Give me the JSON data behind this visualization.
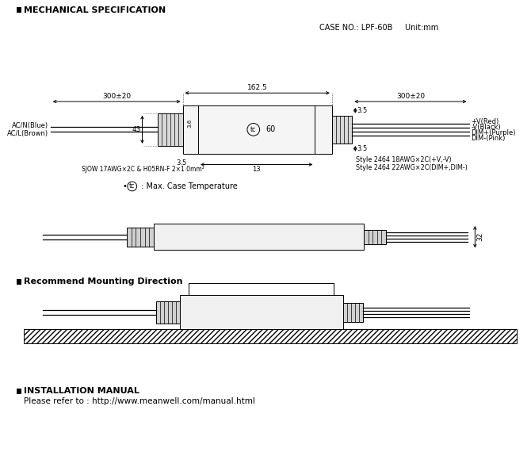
{
  "title_mech": "MECHANICAL SPECIFICATION",
  "title_mount": "Recommend Mounting Direction",
  "title_install": "INSTALLATION MANUAL",
  "install_text": "Please refer to : http://www.meanwell.com/manual.html",
  "case_no": "CASE NO.: LPF-60B     Unit:mm",
  "dim_162_5": "162.5",
  "dim_300_20_left": "300±20",
  "dim_300_20_right": "300±20",
  "dim_3_5_top": "3.5",
  "dim_3_5_bot": "3.5",
  "dim_43": "43",
  "dim_13": "13",
  "dim_3_6": "3.6",
  "dim_60": "60",
  "dim_32": "32",
  "label_ac_blue": "AC/N(Blue)",
  "label_ac_brown": "AC/L(Brown)",
  "label_sjow": "SJOW 17AWG×2C & H05RN-F 2×1.0mm²",
  "label_style1": "Style 2464 18AWG×2C(+V,-V)",
  "label_style2": "Style 2464 22AWG×2C(DIM+,DIM-)",
  "label_v_red": "+V(Red)",
  "label_v_black": "-V(Black)",
  "label_dim_plus": "DIM+(Purple)",
  "label_dim_minus": "DIM-(Pink)",
  "tc_label": "• ",
  "tc_circle_text": "tc",
  "tc_suffix": " : Max. Case Temperature",
  "bg_color": "#ffffff",
  "line_color": "#000000"
}
